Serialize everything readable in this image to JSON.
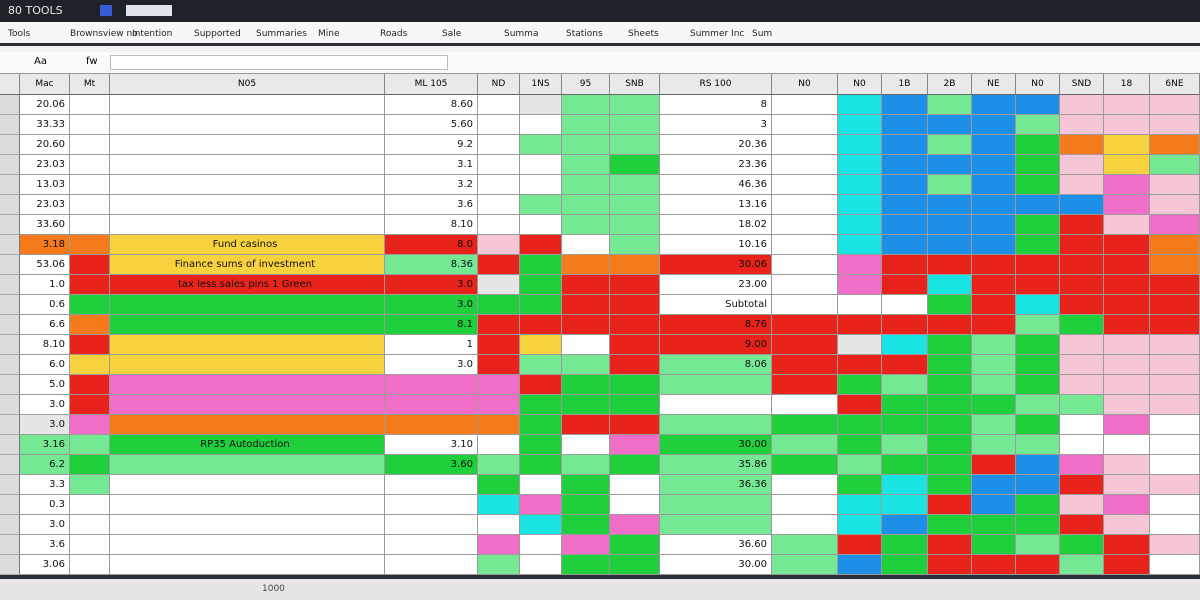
{
  "app": {
    "title": "80 TOOLS",
    "status": "1000"
  },
  "menu": [
    "Tools",
    "Brownsview no",
    "Intention",
    "Supported",
    "Summaries",
    "Mine",
    "Roads",
    "Sale",
    "Summa",
    "Stations",
    "Sheets",
    "Summer Inc",
    "Sum"
  ],
  "formula": {
    "name_box": "Aa",
    "fx": "fw"
  },
  "columns": [
    "Mac",
    "Mt",
    "N05",
    "ML 105",
    "ND",
    "1NS",
    "95",
    "SNB",
    "RS 100",
    "N0",
    "N0",
    "1B",
    "2B",
    "NE",
    "N0",
    "SND",
    "18",
    "6NE"
  ],
  "rows": [
    {
      "label": "20.06",
      "amount": "8.60",
      "total": "8"
    },
    {
      "label": "33.33",
      "amount": "5.60",
      "total": "3"
    },
    {
      "label": "20.60",
      "amount": "9.2",
      "total": "20.36"
    },
    {
      "label": "23.03",
      "amount": "3.1",
      "total": "23.36"
    },
    {
      "label": "13.03",
      "amount": "3.2",
      "total": "46.36"
    },
    {
      "label": "23.03",
      "amount": "3.6",
      "total": "13.16"
    },
    {
      "label": "33.60",
      "amount": "8.10",
      "total": "18.02"
    },
    {
      "label": "3.18",
      "note": "Fund casinos",
      "amount": "8.0",
      "total": "10.16"
    },
    {
      "label": "53.06",
      "note": "Finance sums of investment",
      "amount": "8.36",
      "total": "30.06"
    },
    {
      "label": "1.0",
      "note": "tax less sales pins 1 Green",
      "amount": "3.0",
      "total": "23.00"
    },
    {
      "label": "0.6",
      "amount": "3.0",
      "total": "Subtotal"
    },
    {
      "label": "6.6",
      "amount": "8.1",
      "total": "8.76"
    },
    {
      "label": "8.10",
      "amount": "1",
      "total": "9.00"
    },
    {
      "label": "6.0",
      "amount": "3.0",
      "total": "8.06"
    },
    {
      "label": "5.0"
    },
    {
      "label": "3.0"
    },
    {
      "label": "3.0"
    },
    {
      "label": "3.16",
      "note": "RP35 Autoduction",
      "amount": "3.10",
      "total": "30.00"
    },
    {
      "label": "6.2",
      "amount": "3.60",
      "total": "35.86"
    },
    {
      "label": "3.3",
      "total": "36.36"
    },
    {
      "label": "0.3"
    },
    {
      "label": "3.0"
    },
    {
      "label": "3.6",
      "total": "36.60"
    },
    {
      "label": "3.06",
      "total": "30.00"
    }
  ]
}
